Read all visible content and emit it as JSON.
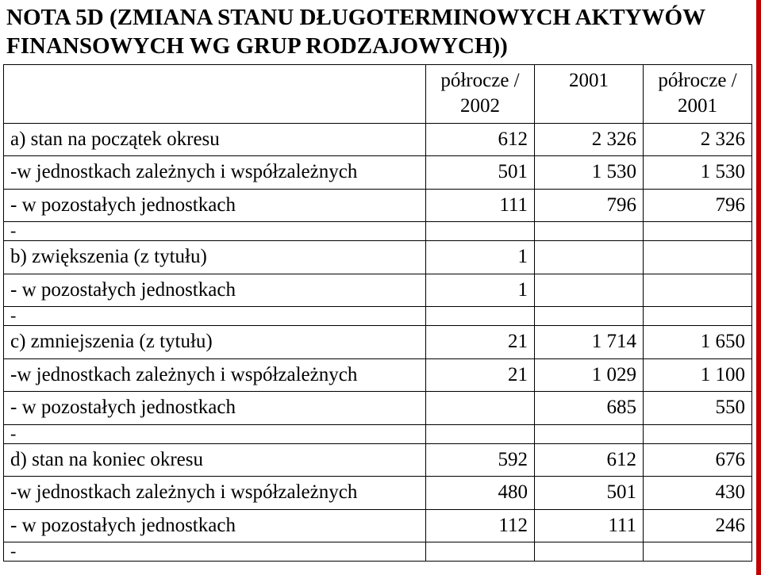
{
  "title": "NOTA 5D (ZMIANA STANU DŁUGOTERMINOWYCH AKTYWÓW FINANSOWYCH WG GRUP RODZAJOWYCH))",
  "table": {
    "columns": {
      "c0_width": 532,
      "c_num_width": 137,
      "border_color": "#000000",
      "font_family": "Times New Roman",
      "header_fontsize": 25,
      "cell_fontsize": 25,
      "text_color": "#000000",
      "background": "#ffffff",
      "accent_border_color": "#c00000"
    },
    "headers": {
      "col1": "półrocze / 2002",
      "col2": "2001",
      "col3": "półrocze / 2001"
    },
    "rows": [
      {
        "label": "a) stan na początek okresu",
        "v1": "612",
        "v2": "2 326",
        "v3": "2 326",
        "cls": ""
      },
      {
        "label": "-w jednostkach zależnych i współzależnych",
        "v1": "501",
        "v2": "1 530",
        "v3": "1 530",
        "cls": ""
      },
      {
        "label": "- w pozostałych jednostkach",
        "v1": "111",
        "v2": "796",
        "v3": "796",
        "cls": ""
      },
      {
        "label": "-",
        "v1": "",
        "v2": "",
        "v3": "",
        "cls": "narrow-row"
      },
      {
        "label": "b) zwiększenia (z tytułu)",
        "v1": "1",
        "v2": "",
        "v3": "",
        "cls": ""
      },
      {
        "label": "- w pozostałych jednostkach",
        "v1": "1",
        "v2": "",
        "v3": "",
        "cls": ""
      },
      {
        "label": "-",
        "v1": "",
        "v2": "",
        "v3": "",
        "cls": "narrow-row"
      },
      {
        "label": "c) zmniejszenia (z tytułu)",
        "v1": "21",
        "v2": "1 714",
        "v3": "1 650",
        "cls": ""
      },
      {
        "label": "-w jednostkach zależnych i współzależnych",
        "v1": "21",
        "v2": "1 029",
        "v3": "1 100",
        "cls": ""
      },
      {
        "label": "- w pozostałych jednostkach",
        "v1": "",
        "v2": "685",
        "v3": "550",
        "cls": ""
      },
      {
        "label": "-",
        "v1": "",
        "v2": "",
        "v3": "",
        "cls": "narrow-row"
      },
      {
        "label": "d) stan na koniec okresu",
        "v1": "592",
        "v2": "612",
        "v3": "676",
        "cls": ""
      },
      {
        "label": "-w jednostkach zależnych i współzależnych",
        "v1": "480",
        "v2": "501",
        "v3": "430",
        "cls": ""
      },
      {
        "label": "- w pozostałych jednostkach",
        "v1": "112",
        "v2": "111",
        "v3": "246",
        "cls": ""
      },
      {
        "label": "-",
        "v1": "",
        "v2": "",
        "v3": "",
        "cls": "narrow-row"
      }
    ]
  }
}
